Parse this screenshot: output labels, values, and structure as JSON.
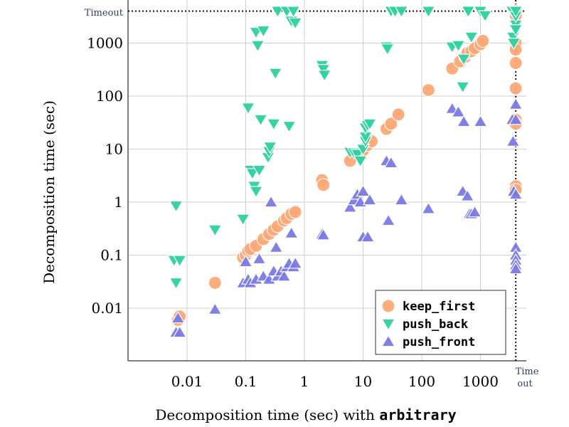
{
  "chart_data": {
    "type": "scatter",
    "scale": "log-log",
    "xlabel_prefix": "Decomposition time (sec) with ",
    "xlabel_mono": "arbitrary",
    "ylabel": "Decomposition time (sec)",
    "xlim": [
      0.0015,
      9000
    ],
    "ylim": [
      0.0009,
      9000
    ],
    "timeout_value": 4000,
    "timeout_label_y": "Timeout",
    "timeout_label_x_1": "Time",
    "timeout_label_x_2": "out",
    "x_ticks": [
      {
        "value": 0.01,
        "label": "0.01"
      },
      {
        "value": 0.1,
        "label": "0.1"
      },
      {
        "value": 1,
        "label": "1"
      },
      {
        "value": 10,
        "label": "10"
      },
      {
        "value": 100,
        "label": "100"
      },
      {
        "value": 1000,
        "label": "1000"
      }
    ],
    "y_ticks": [
      {
        "value": 0.01,
        "label": "0.01"
      },
      {
        "value": 0.1,
        "label": "0.1"
      },
      {
        "value": 1,
        "label": "1"
      },
      {
        "value": 10,
        "label": "10"
      },
      {
        "value": 100,
        "label": "100"
      },
      {
        "value": 1000,
        "label": "1000"
      }
    ],
    "legend_position": "bottom-right",
    "series": [
      {
        "name": "keep_first",
        "marker": "circle",
        "color": "#fca877",
        "points": [
          [
            0.007,
            0.006
          ],
          [
            0.0075,
            0.007
          ],
          [
            0.03,
            0.03
          ],
          [
            0.09,
            0.09
          ],
          [
            0.1,
            0.1
          ],
          [
            0.11,
            0.12
          ],
          [
            0.12,
            0.13
          ],
          [
            0.15,
            0.15
          ],
          [
            0.2,
            0.2
          ],
          [
            0.25,
            0.25
          ],
          [
            0.3,
            0.3
          ],
          [
            0.35,
            0.35
          ],
          [
            0.45,
            0.45
          ],
          [
            0.5,
            0.5
          ],
          [
            0.6,
            0.6
          ],
          [
            0.7,
            0.65
          ],
          [
            2.0,
            2.6
          ],
          [
            2.1,
            2.1
          ],
          [
            6.0,
            6.0
          ],
          [
            9.0,
            8.5
          ],
          [
            10,
            9.5
          ],
          [
            12,
            12
          ],
          [
            14,
            14
          ],
          [
            25,
            24
          ],
          [
            30,
            30
          ],
          [
            40,
            45
          ],
          [
            130,
            130
          ],
          [
            330,
            330
          ],
          [
            450,
            450
          ],
          [
            550,
            550
          ],
          [
            600,
            650
          ],
          [
            700,
            700
          ],
          [
            800,
            800
          ],
          [
            1000,
            950
          ],
          [
            1100,
            1100
          ],
          [
            4000,
            4000
          ],
          [
            4000,
            3300
          ],
          [
            4000,
            1000
          ],
          [
            4000,
            750
          ],
          [
            4000,
            420
          ],
          [
            4000,
            140
          ],
          [
            4000,
            36
          ],
          [
            4000,
            30
          ],
          [
            4000,
            2.0
          ],
          [
            4000,
            1.7
          ]
        ]
      },
      {
        "name": "push_back",
        "marker": "triangle-down",
        "color": "#2ed1a0",
        "points": [
          [
            0.006,
            0.08
          ],
          [
            0.0065,
            0.03
          ],
          [
            0.0065,
            0.85
          ],
          [
            0.0075,
            0.08
          ],
          [
            0.03,
            0.3
          ],
          [
            0.09,
            0.48
          ],
          [
            0.11,
            60
          ],
          [
            0.12,
            4.0
          ],
          [
            0.13,
            3.5
          ],
          [
            0.14,
            2.0
          ],
          [
            0.15,
            1.6
          ],
          [
            0.15,
            1600
          ],
          [
            0.16,
            900
          ],
          [
            0.17,
            4.0
          ],
          [
            0.18,
            36
          ],
          [
            0.2,
            1700
          ],
          [
            0.24,
            7.0
          ],
          [
            0.25,
            9.0
          ],
          [
            0.26,
            11.0
          ],
          [
            0.3,
            30
          ],
          [
            0.32,
            270
          ],
          [
            0.35,
            4000
          ],
          [
            0.5,
            4000
          ],
          [
            0.55,
            27
          ],
          [
            0.6,
            2600
          ],
          [
            0.65,
            4000
          ],
          [
            0.7,
            2400
          ],
          [
            2.0,
            380
          ],
          [
            2.1,
            320
          ],
          [
            2.2,
            250
          ],
          [
            6.0,
            8.8
          ],
          [
            7.0,
            8.5
          ],
          [
            8.0,
            8.0
          ],
          [
            9.0,
            6.0
          ],
          [
            10,
            10
          ],
          [
            11,
            14
          ],
          [
            11,
            17
          ],
          [
            11,
            25
          ],
          [
            12,
            28
          ],
          [
            13,
            30
          ],
          [
            25,
            850
          ],
          [
            26,
            780
          ],
          [
            30,
            4000
          ],
          [
            35,
            4000
          ],
          [
            45,
            4000
          ],
          [
            130,
            4000
          ],
          [
            330,
            850
          ],
          [
            420,
            900
          ],
          [
            500,
            150
          ],
          [
            520,
            500
          ],
          [
            600,
            4000
          ],
          [
            620,
            4000
          ],
          [
            700,
            1300
          ],
          [
            1000,
            4000
          ],
          [
            1200,
            3300
          ],
          [
            3500,
            4000
          ],
          [
            3600,
            1300
          ],
          [
            3700,
            1000
          ],
          [
            4000,
            2200
          ],
          [
            4000,
            1800
          ],
          [
            4000,
            3200
          ],
          [
            4000,
            4000
          ]
        ]
      },
      {
        "name": "push_front",
        "marker": "triangle-up",
        "color": "#7a7ae6",
        "points": [
          [
            0.0065,
            0.0035
          ],
          [
            0.007,
            0.0065
          ],
          [
            0.0075,
            0.0035
          ],
          [
            0.03,
            0.0095
          ],
          [
            0.09,
            0.03
          ],
          [
            0.1,
            0.075
          ],
          [
            0.11,
            0.035
          ],
          [
            0.12,
            0.03
          ],
          [
            0.15,
            0.035
          ],
          [
            0.17,
            0.085
          ],
          [
            0.2,
            0.04
          ],
          [
            0.25,
            0.035
          ],
          [
            0.27,
            1.0
          ],
          [
            0.3,
            0.05
          ],
          [
            0.33,
            0.14
          ],
          [
            0.35,
            0.04
          ],
          [
            0.4,
            0.05
          ],
          [
            0.45,
            0.04
          ],
          [
            0.5,
            0.06
          ],
          [
            0.55,
            0.07
          ],
          [
            0.6,
            0.26
          ],
          [
            0.65,
            0.06
          ],
          [
            0.7,
            0.07
          ],
          [
            2.0,
            0.25
          ],
          [
            2.1,
            0.24
          ],
          [
            6.0,
            0.8
          ],
          [
            7.0,
            1.1
          ],
          [
            8.0,
            1.4
          ],
          [
            9.0,
            1.0
          ],
          [
            10,
            1.6
          ],
          [
            10,
            0.22
          ],
          [
            12,
            0.22
          ],
          [
            13,
            1.1
          ],
          [
            25,
            6.0
          ],
          [
            27,
            0.45
          ],
          [
            30,
            5.5
          ],
          [
            45,
            1.1
          ],
          [
            130,
            0.75
          ],
          [
            330,
            58
          ],
          [
            420,
            50
          ],
          [
            500,
            1.6
          ],
          [
            520,
            33
          ],
          [
            600,
            1.3
          ],
          [
            650,
            0.6
          ],
          [
            700,
            0.6
          ],
          [
            800,
            0.65
          ],
          [
            1000,
            33
          ],
          [
            3500,
            36
          ],
          [
            3600,
            14
          ],
          [
            3700,
            1.6
          ],
          [
            4000,
            70
          ],
          [
            4000,
            36
          ],
          [
            4000,
            1.4
          ],
          [
            4000,
            0.14
          ],
          [
            4000,
            0.1
          ],
          [
            4000,
            0.08
          ],
          [
            4000,
            0.065
          ],
          [
            4000,
            0.055
          ]
        ]
      }
    ]
  }
}
